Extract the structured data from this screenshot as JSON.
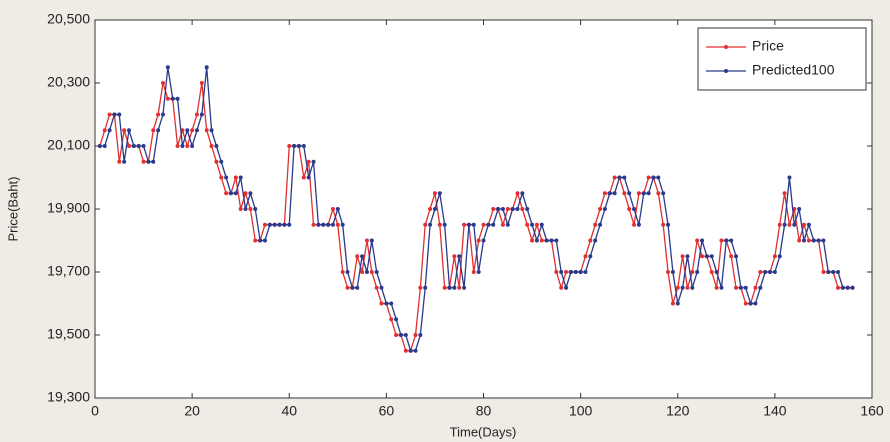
{
  "chart_data": {
    "type": "line",
    "x_label": "Time(Days)",
    "y_label": "Price(Baht)",
    "x": [
      1,
      2,
      3,
      4,
      5,
      6,
      7,
      8,
      9,
      10,
      11,
      12,
      13,
      14,
      15,
      16,
      17,
      18,
      19,
      20,
      21,
      22,
      23,
      24,
      25,
      26,
      27,
      28,
      29,
      30,
      31,
      32,
      33,
      34,
      35,
      36,
      37,
      38,
      39,
      40,
      41,
      42,
      43,
      44,
      45,
      46,
      47,
      48,
      49,
      50,
      51,
      52,
      53,
      54,
      55,
      56,
      57,
      58,
      59,
      60,
      61,
      62,
      63,
      64,
      65,
      66,
      67,
      68,
      69,
      70,
      71,
      72,
      73,
      74,
      75,
      76,
      77,
      78,
      79,
      80,
      81,
      82,
      83,
      84,
      85,
      86,
      87,
      88,
      89,
      90,
      91,
      92,
      93,
      94,
      95,
      96,
      97,
      98,
      99,
      100,
      101,
      102,
      103,
      104,
      105,
      106,
      107,
      108,
      109,
      110,
      111,
      112,
      113,
      114,
      115,
      116,
      117,
      118,
      119,
      120,
      121,
      122,
      123,
      124,
      125,
      126,
      127,
      128,
      129,
      130,
      131,
      132,
      133,
      134,
      135,
      136,
      137,
      138,
      139,
      140,
      141,
      142,
      143,
      144,
      145,
      146,
      147,
      148,
      149,
      150,
      151,
      152,
      153,
      154,
      155,
      156
    ],
    "series": [
      {
        "name": "Price",
        "color": "#e03030",
        "values": [
          20100,
          20150,
          20200,
          20200,
          20050,
          20150,
          20100,
          20100,
          20100,
          20050,
          20050,
          20150,
          20200,
          20300,
          20250,
          20250,
          20100,
          20150,
          20100,
          20150,
          20200,
          20300,
          20150,
          20100,
          20050,
          20000,
          19950,
          19950,
          20000,
          19900,
          19950,
          19900,
          19800,
          19800,
          19850,
          19850,
          19850,
          19850,
          19850,
          20100,
          20100,
          20100,
          20000,
          20050,
          19850,
          19850,
          19850,
          19850,
          19900,
          19850,
          19700,
          19650,
          19650,
          19750,
          19700,
          19800,
          19700,
          19650,
          19600,
          19600,
          19550,
          19500,
          19500,
          19450,
          19450,
          19500,
          19650,
          19850,
          19900,
          19950,
          19850,
          19650,
          19650,
          19750,
          19650,
          19850,
          19850,
          19700,
          19800,
          19850,
          19850,
          19900,
          19900,
          19850,
          19900,
          19900,
          19950,
          19900,
          19850,
          19800,
          19850,
          19800,
          19800,
          19800,
          19700,
          19650,
          19700,
          19700,
          19700,
          19700,
          19750,
          19800,
          19850,
          19900,
          19950,
          19950,
          20000,
          20000,
          19950,
          19900,
          19850,
          19950,
          19950,
          20000,
          20000,
          19950,
          19850,
          19700,
          19600,
          19650,
          19750,
          19650,
          19700,
          19800,
          19750,
          19750,
          19700,
          19650,
          19800,
          19800,
          19750,
          19650,
          19650,
          19600,
          19600,
          19650,
          19700,
          19700,
          19700,
          19750,
          19850,
          19950,
          19850,
          19900,
          19800,
          19850,
          19800,
          19800,
          19800,
          19700,
          19700,
          19700,
          19650,
          19650,
          19650,
          19650
        ]
      },
      {
        "name": "Predicted100",
        "color": "#2a3a8c",
        "values": [
          20100,
          20100,
          20150,
          20200,
          20200,
          20050,
          20150,
          20100,
          20100,
          20100,
          20050,
          20050,
          20150,
          20200,
          20350,
          20250,
          20250,
          20100,
          20150,
          20100,
          20150,
          20200,
          20350,
          20150,
          20100,
          20050,
          20000,
          19950,
          19950,
          20000,
          19900,
          19950,
          19900,
          19800,
          19800,
          19850,
          19850,
          19850,
          19850,
          19850,
          20100,
          20100,
          20100,
          20000,
          20050,
          19850,
          19850,
          19850,
          19850,
          19900,
          19850,
          19700,
          19650,
          19650,
          19750,
          19700,
          19800,
          19700,
          19650,
          19600,
          19600,
          19550,
          19500,
          19500,
          19450,
          19450,
          19500,
          19650,
          19850,
          19900,
          19950,
          19850,
          19650,
          19650,
          19750,
          19650,
          19850,
          19850,
          19700,
          19800,
          19850,
          19850,
          19900,
          19900,
          19850,
          19900,
          19900,
          19950,
          19900,
          19850,
          19800,
          19850,
          19800,
          19800,
          19800,
          19700,
          19650,
          19700,
          19700,
          19700,
          19700,
          19750,
          19800,
          19850,
          19900,
          19950,
          19950,
          20000,
          20000,
          19950,
          19900,
          19850,
          19950,
          19950,
          20000,
          20000,
          19950,
          19850,
          19700,
          19600,
          19650,
          19750,
          19650,
          19700,
          19800,
          19750,
          19750,
          19700,
          19650,
          19800,
          19800,
          19750,
          19650,
          19650,
          19600,
          19600,
          19650,
          19700,
          19700,
          19700,
          19750,
          19850,
          20000,
          19850,
          19900,
          19800,
          19850,
          19800,
          19800,
          19800,
          19700,
          19700,
          19700,
          19650,
          19650,
          19650
        ]
      }
    ],
    "xlim": [
      0,
      160
    ],
    "xticks": [
      0,
      20,
      40,
      60,
      80,
      100,
      120,
      140,
      160
    ],
    "ylim": [
      19300,
      20500
    ],
    "yticks": [
      {
        "value": 19300,
        "label": "19,300"
      },
      {
        "value": 19500,
        "label": "19,500"
      },
      {
        "value": 19700,
        "label": "19,700"
      },
      {
        "value": 19900,
        "label": "19,900"
      },
      {
        "value": 20100,
        "label": "20,100"
      },
      {
        "value": 20300,
        "label": "20,300"
      },
      {
        "value": 20500,
        "label": "20,500"
      }
    ],
    "legend": "northeast",
    "grid": false
  }
}
